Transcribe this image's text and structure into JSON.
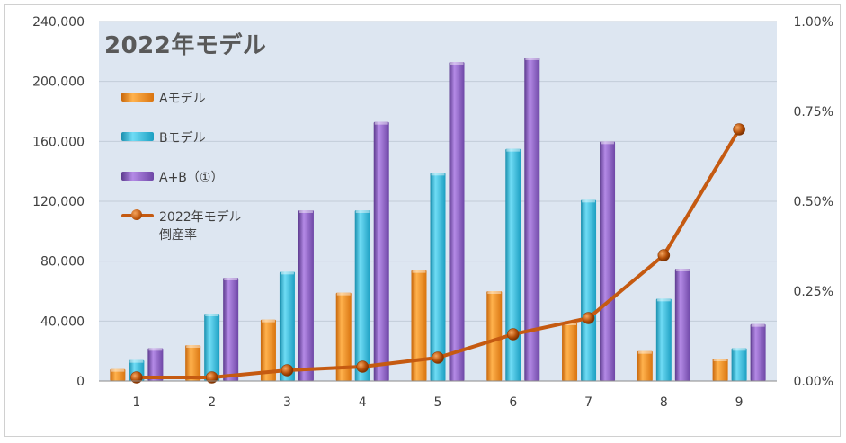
{
  "chart_data": {
    "type": "bar",
    "title": "2022年モデル",
    "categories": [
      "1",
      "2",
      "3",
      "4",
      "5",
      "6",
      "7",
      "8",
      "9"
    ],
    "series": [
      {
        "name": "Aモデル",
        "color": "#f08a1c",
        "values": [
          8000,
          24000,
          41000,
          59000,
          74000,
          60000,
          39000,
          20000,
          15000
        ]
      },
      {
        "name": "Bモデル",
        "color": "#2ab3d6",
        "values": [
          14000,
          45000,
          73000,
          114000,
          139000,
          155000,
          121000,
          55000,
          22000
        ]
      },
      {
        "name": "A+B（①）",
        "color": "#8a5dc2",
        "values": [
          22000,
          69000,
          114000,
          173000,
          213000,
          216000,
          160000,
          75000,
          38000
        ]
      }
    ],
    "line_series": {
      "name": "2022年モデル\n倒産率",
      "color": "#c55a11",
      "axis": "right",
      "values": [
        0.0001,
        0.0001,
        0.0003,
        0.0004,
        0.00065,
        0.0013,
        0.00175,
        0.0035,
        0.007
      ]
    },
    "ylim": [
      0,
      240000
    ],
    "y_ticks": [
      "0",
      "40,000",
      "80,000",
      "120,000",
      "160,000",
      "200,000",
      "240,000"
    ],
    "y2lim": [
      0,
      0.01
    ],
    "y2_ticks": [
      "0.00%",
      "0.25%",
      "0.50%",
      "0.75%",
      "1.00%"
    ],
    "xlabel": "",
    "ylabel": "",
    "grid": true,
    "legend_position": "top-left"
  }
}
